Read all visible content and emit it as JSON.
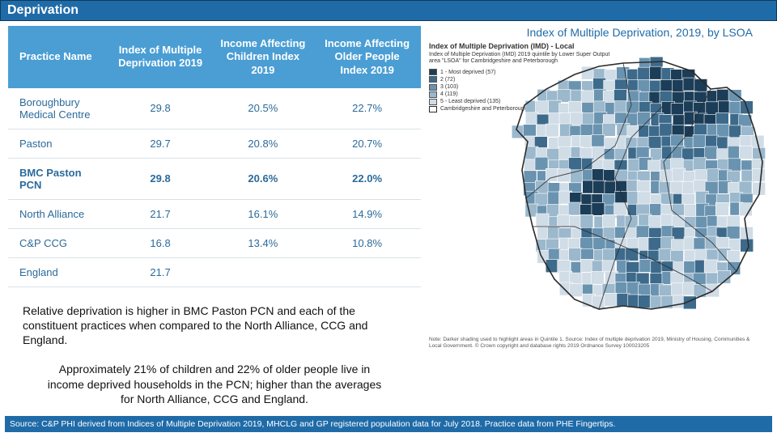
{
  "title": "Deprivation",
  "map_title": "Index of Multiple Deprivation, 2019, by LSOA",
  "table": {
    "columns": [
      "Practice Name",
      "Index of Multiple Deprivation 2019",
      "Income Affecting Children Index 2019",
      "Income Affecting Older People Index 2019"
    ],
    "rows": [
      {
        "cells": [
          "Boroughbury Medical Centre",
          "29.8",
          "20.5%",
          "22.7%"
        ],
        "bold": false
      },
      {
        "cells": [
          "Paston",
          "29.7",
          "20.8%",
          "20.7%"
        ],
        "bold": false
      },
      {
        "cells": [
          "BMC Paston PCN",
          "29.8",
          "20.6%",
          "22.0%"
        ],
        "bold": true
      },
      {
        "cells": [
          "North Alliance",
          "21.7",
          "16.1%",
          "14.9%"
        ],
        "bold": false
      },
      {
        "cells": [
          "C&P CCG",
          "16.8",
          "13.4%",
          "10.8%"
        ],
        "bold": false
      },
      {
        "cells": [
          "England",
          "21.7",
          "",
          ""
        ],
        "bold": false
      }
    ]
  },
  "note1": "Relative deprivation is higher in BMC Paston PCN and each of the constituent practices when compared to the North Alliance, CCG and England.",
  "note2": "Approximately 21% of children and 22% of older people live in income deprived households in the PCN; higher than the averages for North Alliance, CCG and England.",
  "source": "Source: C&P PHI derived from Indices of Multiple Deprivation 2019, MHCLG and GP registered population data for July 2018. Practice data from PHE Fingertips.",
  "map": {
    "heading": "Index of Multiple Deprivation (IMD) - Local",
    "subtitle": "Index of Multiple Deprivation (IMD) 2019 quintile by Lower Super Output area \"LSOA\" for Cambridgeshire and Peterborough",
    "legend_items": [
      {
        "label": "1 - Most deprived",
        "count": "(57)",
        "color": "#1c3d57"
      },
      {
        "label": "2",
        "count": "(72)",
        "color": "#3d6a8a"
      },
      {
        "label": "3",
        "count": "(103)",
        "color": "#6a93b0"
      },
      {
        "label": "4",
        "count": "(119)",
        "color": "#9bb8cc"
      },
      {
        "label": "5 - Least deprived",
        "count": "(135)",
        "color": "#d0dce6"
      }
    ],
    "legend_boundary": "Cambridgeshire and Peterborough district boundary",
    "quintile_colors": {
      "q1": "#1c3d57",
      "q2": "#3d6a8a",
      "q3": "#6a93b0",
      "q4": "#9bb8cc",
      "q5": "#d0dce6"
    },
    "boundary_color": "#2b2b2b",
    "cell_stroke": "#ffffff",
    "footnote": "Note: Darker shading used to highlight areas in Quintile 1.\nSource: Index of multiple deprivation 2019, Ministry of Housing, Communities & Local Government.\n© Crown copyright and database rights 2019 Ordnance Survey 100023205"
  }
}
